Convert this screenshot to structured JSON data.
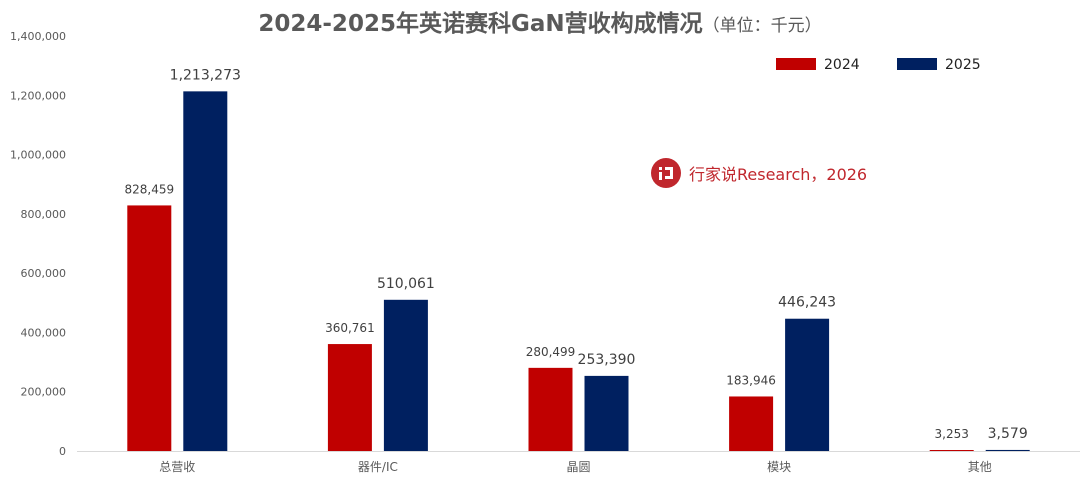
{
  "chart_data": {
    "type": "bar",
    "title": "2024-2025年英诺赛科GaN营收构成情况",
    "unit_note": "（单位：千元）",
    "categories": [
      "总营收",
      "器件/IC",
      "晶圆",
      "模块",
      "其他"
    ],
    "series": [
      {
        "name": "2024",
        "color": "#c00000",
        "values": [
          828459,
          360761,
          280499,
          183946,
          3253
        ],
        "labels": [
          "828,459",
          "360,761",
          "280,499",
          "183,946",
          "3,253"
        ]
      },
      {
        "name": "2025",
        "color": "#002060",
        "values": [
          1213273,
          510061,
          253390,
          446243,
          3579
        ],
        "labels": [
          "1,213,273",
          "510,061",
          "253,390",
          "446,243",
          "3,579"
        ]
      }
    ],
    "yticks": [
      "0",
      "200,000",
      "400,000",
      "600,000",
      "800,000",
      "1,000,000",
      "1,200,000",
      "1,400,000"
    ],
    "ylim": [
      0,
      1400000
    ],
    "grid": false,
    "legend": "top-right"
  },
  "watermark": {
    "text": "行家说Research，2026",
    "color": "#c0272d",
    "icon": "xingjiashuo-logo-icon"
  }
}
